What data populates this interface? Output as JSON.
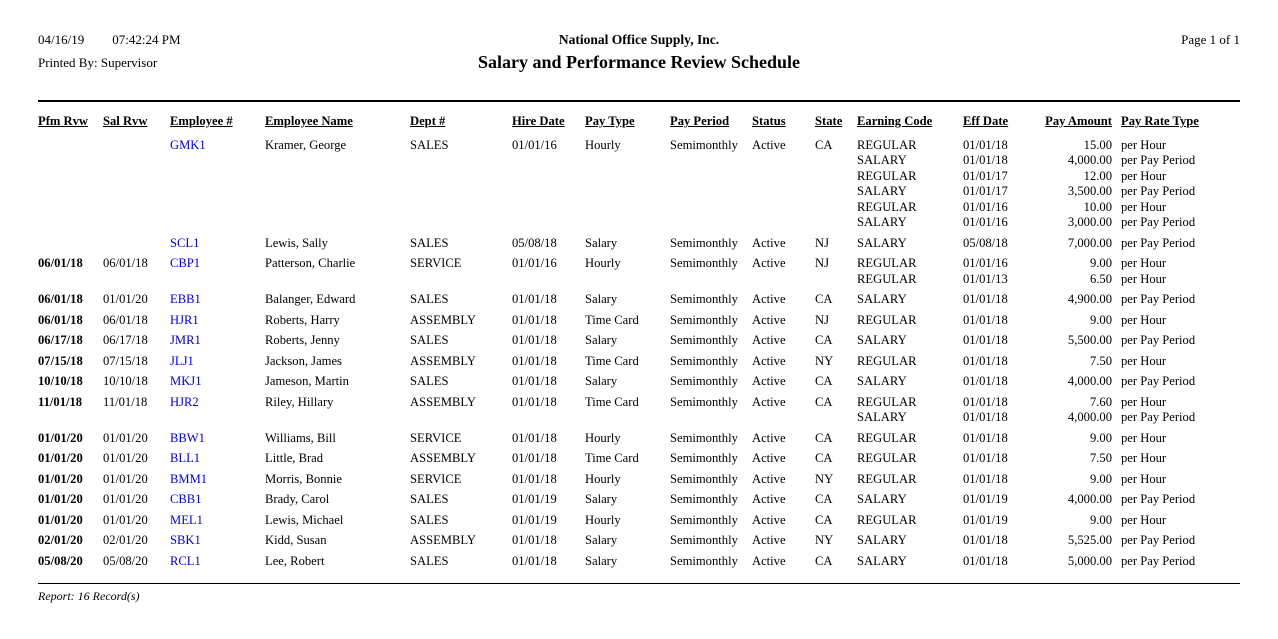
{
  "colors": {
    "background": "#ffffff",
    "text": "#000000",
    "employee_link": "#0000cc"
  },
  "header": {
    "date": "04/16/19",
    "time": "07:42:24 PM",
    "printed_by": "Printed By: Supervisor",
    "company": "National Office Supply, Inc.",
    "title": "Salary and Performance Review Schedule",
    "page": "Page 1 of  1"
  },
  "table": {
    "columns": [
      "Pfm Rvw",
      "Sal Rvw",
      "Employee #",
      "Employee Name",
      "Dept #",
      "Hire Date",
      "Pay Type",
      "Pay Period",
      "Status",
      "State",
      "Earning Code",
      "Eff Date",
      "Pay Amount",
      "Pay Rate Type"
    ],
    "rows": [
      {
        "pfm_rvw": "",
        "sal_rvw": "",
        "employee_no": "GMK1",
        "employee_name": "Kramer, George",
        "dept": "SALES",
        "hire_date": "01/01/16",
        "pay_type": "Hourly",
        "pay_period": "Semimonthly",
        "status": "Active",
        "state": "CA",
        "earnings": [
          {
            "code": "REGULAR",
            "eff_date": "01/01/18",
            "amount": "15.00",
            "rate_type": "per Hour"
          },
          {
            "code": "SALARY",
            "eff_date": "01/01/18",
            "amount": "4,000.00",
            "rate_type": "per Pay Period"
          },
          {
            "code": "REGULAR",
            "eff_date": "01/01/17",
            "amount": "12.00",
            "rate_type": "per Hour"
          },
          {
            "code": "SALARY",
            "eff_date": "01/01/17",
            "amount": "3,500.00",
            "rate_type": "per Pay Period"
          },
          {
            "code": "REGULAR",
            "eff_date": "01/01/16",
            "amount": "10.00",
            "rate_type": "per Hour"
          },
          {
            "code": "SALARY",
            "eff_date": "01/01/16",
            "amount": "3,000.00",
            "rate_type": "per Pay Period"
          }
        ]
      },
      {
        "pfm_rvw": "",
        "sal_rvw": "",
        "employee_no": "SCL1",
        "employee_name": "Lewis, Sally",
        "dept": "SALES",
        "hire_date": "05/08/18",
        "pay_type": "Salary",
        "pay_period": "Semimonthly",
        "status": "Active",
        "state": "NJ",
        "earnings": [
          {
            "code": "SALARY",
            "eff_date": "05/08/18",
            "amount": "7,000.00",
            "rate_type": "per Pay Period"
          }
        ]
      },
      {
        "pfm_rvw": "06/01/18",
        "sal_rvw": "06/01/18",
        "employee_no": "CBP1",
        "employee_name": "Patterson, Charlie",
        "dept": "SERVICE",
        "hire_date": "01/01/16",
        "pay_type": "Hourly",
        "pay_period": "Semimonthly",
        "status": "Active",
        "state": "NJ",
        "earnings": [
          {
            "code": "REGULAR",
            "eff_date": "01/01/16",
            "amount": "9.00",
            "rate_type": "per Hour"
          },
          {
            "code": "REGULAR",
            "eff_date": "01/01/13",
            "amount": "6.50",
            "rate_type": "per Hour"
          }
        ]
      },
      {
        "pfm_rvw": "06/01/18",
        "sal_rvw": "01/01/20",
        "employee_no": "EBB1",
        "employee_name": "Balanger, Edward",
        "dept": "SALES",
        "hire_date": "01/01/18",
        "pay_type": "Salary",
        "pay_period": "Semimonthly",
        "status": "Active",
        "state": "CA",
        "earnings": [
          {
            "code": "SALARY",
            "eff_date": "01/01/18",
            "amount": "4,900.00",
            "rate_type": "per Pay Period"
          }
        ]
      },
      {
        "pfm_rvw": "06/01/18",
        "sal_rvw": "06/01/18",
        "employee_no": "HJR1",
        "employee_name": "Roberts, Harry",
        "dept": "ASSEMBLY",
        "hire_date": "01/01/18",
        "pay_type": "Time Card",
        "pay_period": "Semimonthly",
        "status": "Active",
        "state": "NJ",
        "earnings": [
          {
            "code": "REGULAR",
            "eff_date": "01/01/18",
            "amount": "9.00",
            "rate_type": "per Hour"
          }
        ]
      },
      {
        "pfm_rvw": "06/17/18",
        "sal_rvw": "06/17/18",
        "employee_no": "JMR1",
        "employee_name": "Roberts, Jenny",
        "dept": "SALES",
        "hire_date": "01/01/18",
        "pay_type": "Salary",
        "pay_period": "Semimonthly",
        "status": "Active",
        "state": "CA",
        "earnings": [
          {
            "code": "SALARY",
            "eff_date": "01/01/18",
            "amount": "5,500.00",
            "rate_type": "per Pay Period"
          }
        ]
      },
      {
        "pfm_rvw": "07/15/18",
        "sal_rvw": "07/15/18",
        "employee_no": "JLJ1",
        "employee_name": "Jackson, James",
        "dept": "ASSEMBLY",
        "hire_date": "01/01/18",
        "pay_type": "Time Card",
        "pay_period": "Semimonthly",
        "status": "Active",
        "state": "NY",
        "earnings": [
          {
            "code": "REGULAR",
            "eff_date": "01/01/18",
            "amount": "7.50",
            "rate_type": "per Hour"
          }
        ]
      },
      {
        "pfm_rvw": "10/10/18",
        "sal_rvw": "10/10/18",
        "employee_no": "MKJ1",
        "employee_name": "Jameson, Martin",
        "dept": "SALES",
        "hire_date": "01/01/18",
        "pay_type": "Salary",
        "pay_period": "Semimonthly",
        "status": "Active",
        "state": "CA",
        "earnings": [
          {
            "code": "SALARY",
            "eff_date": "01/01/18",
            "amount": "4,000.00",
            "rate_type": "per Pay Period"
          }
        ]
      },
      {
        "pfm_rvw": "11/01/18",
        "sal_rvw": "11/01/18",
        "employee_no": "HJR2",
        "employee_name": "Riley, Hillary",
        "dept": "ASSEMBLY",
        "hire_date": "01/01/18",
        "pay_type": "Time Card",
        "pay_period": "Semimonthly",
        "status": "Active",
        "state": "CA",
        "earnings": [
          {
            "code": "REGULAR",
            "eff_date": "01/01/18",
            "amount": "7.60",
            "rate_type": "per Hour"
          },
          {
            "code": "SALARY",
            "eff_date": "01/01/18",
            "amount": "4,000.00",
            "rate_type": "per Pay Period"
          }
        ]
      },
      {
        "pfm_rvw": "01/01/20",
        "sal_rvw": "01/01/20",
        "employee_no": "BBW1",
        "employee_name": "Williams, Bill",
        "dept": "SERVICE",
        "hire_date": "01/01/18",
        "pay_type": "Hourly",
        "pay_period": "Semimonthly",
        "status": "Active",
        "state": "CA",
        "earnings": [
          {
            "code": "REGULAR",
            "eff_date": "01/01/18",
            "amount": "9.00",
            "rate_type": "per Hour"
          }
        ]
      },
      {
        "pfm_rvw": "01/01/20",
        "sal_rvw": "01/01/20",
        "employee_no": "BLL1",
        "employee_name": "Little, Brad",
        "dept": "ASSEMBLY",
        "hire_date": "01/01/18",
        "pay_type": "Time Card",
        "pay_period": "Semimonthly",
        "status": "Active",
        "state": "CA",
        "earnings": [
          {
            "code": "REGULAR",
            "eff_date": "01/01/18",
            "amount": "7.50",
            "rate_type": "per Hour"
          }
        ]
      },
      {
        "pfm_rvw": "01/01/20",
        "sal_rvw": "01/01/20",
        "employee_no": "BMM1",
        "employee_name": "Morris, Bonnie",
        "dept": "SERVICE",
        "hire_date": "01/01/18",
        "pay_type": "Hourly",
        "pay_period": "Semimonthly",
        "status": "Active",
        "state": "NY",
        "earnings": [
          {
            "code": "REGULAR",
            "eff_date": "01/01/18",
            "amount": "9.00",
            "rate_type": "per Hour"
          }
        ]
      },
      {
        "pfm_rvw": "01/01/20",
        "sal_rvw": "01/01/20",
        "employee_no": "CBB1",
        "employee_name": "Brady, Carol",
        "dept": "SALES",
        "hire_date": "01/01/19",
        "pay_type": "Salary",
        "pay_period": "Semimonthly",
        "status": "Active",
        "state": "CA",
        "earnings": [
          {
            "code": "SALARY",
            "eff_date": "01/01/19",
            "amount": "4,000.00",
            "rate_type": "per Pay Period"
          }
        ]
      },
      {
        "pfm_rvw": "01/01/20",
        "sal_rvw": "01/01/20",
        "employee_no": "MEL1",
        "employee_name": "Lewis, Michael",
        "dept": "SALES",
        "hire_date": "01/01/19",
        "pay_type": "Hourly",
        "pay_period": "Semimonthly",
        "status": "Active",
        "state": "CA",
        "earnings": [
          {
            "code": "REGULAR",
            "eff_date": "01/01/19",
            "amount": "9.00",
            "rate_type": "per Hour"
          }
        ]
      },
      {
        "pfm_rvw": "02/01/20",
        "sal_rvw": "02/01/20",
        "employee_no": "SBK1",
        "employee_name": "Kidd, Susan",
        "dept": "ASSEMBLY",
        "hire_date": "01/01/18",
        "pay_type": "Salary",
        "pay_period": "Semimonthly",
        "status": "Active",
        "state": "NY",
        "earnings": [
          {
            "code": "SALARY",
            "eff_date": "01/01/18",
            "amount": "5,525.00",
            "rate_type": "per Pay Period"
          }
        ]
      },
      {
        "pfm_rvw": "05/08/20",
        "sal_rvw": "05/08/20",
        "employee_no": "RCL1",
        "employee_name": "Lee, Robert",
        "dept": "SALES",
        "hire_date": "01/01/18",
        "pay_type": "Salary",
        "pay_period": "Semimonthly",
        "status": "Active",
        "state": "CA",
        "earnings": [
          {
            "code": "SALARY",
            "eff_date": "01/01/18",
            "amount": "5,000.00",
            "rate_type": "per Pay Period"
          }
        ]
      }
    ]
  },
  "footer": {
    "summary": "Report: 16 Record(s)"
  }
}
